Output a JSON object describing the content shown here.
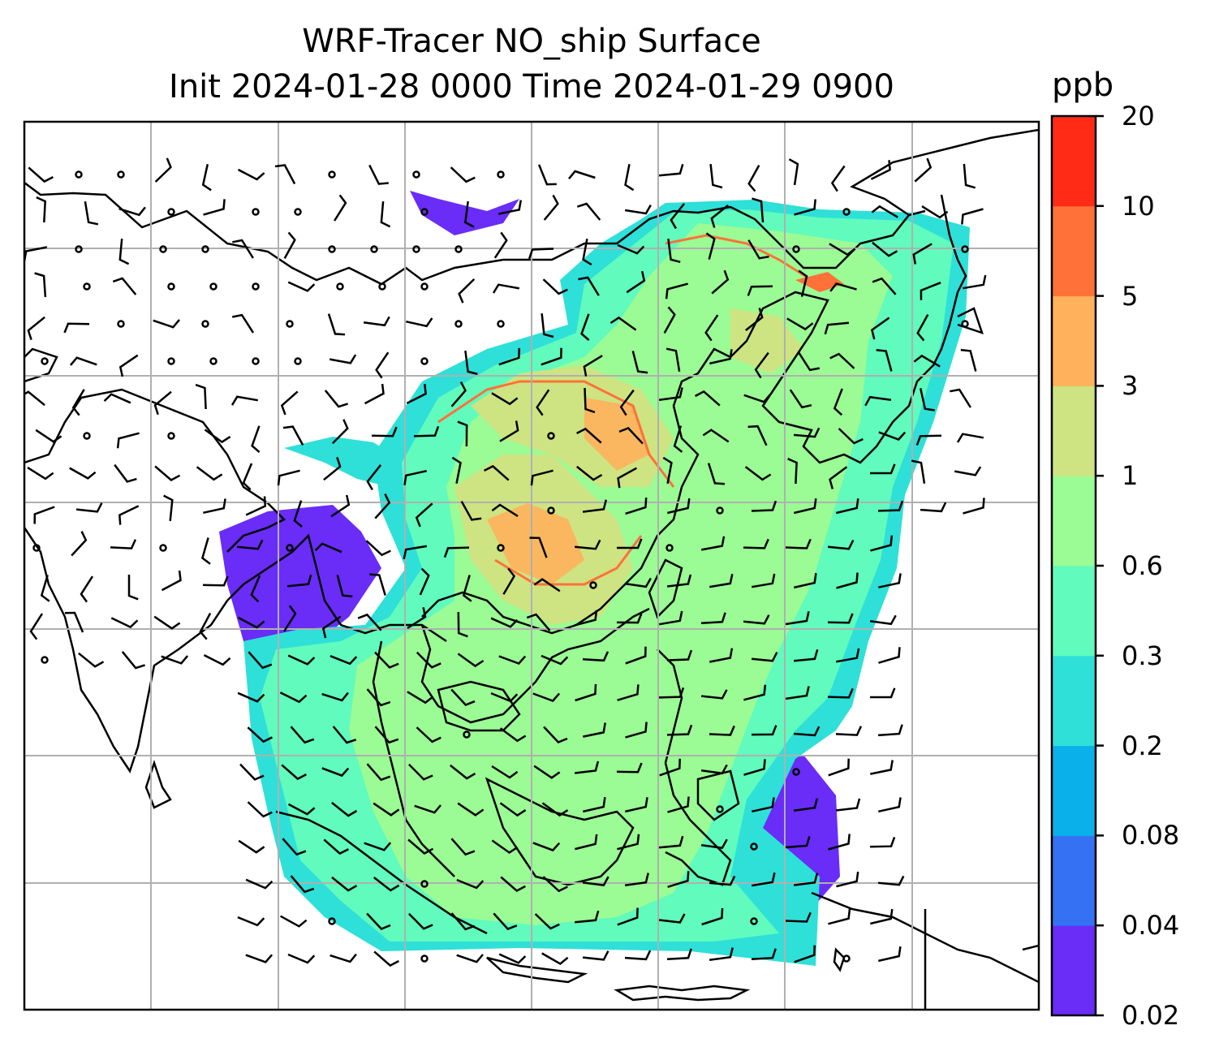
{
  "title": {
    "line1": "WRF-Tracer NO_ship Surface",
    "line2": "Init 2024-01-28 0000 Time 2024-01-29 0900"
  },
  "colorbar": {
    "units": "ppb",
    "levels": [
      "0.02",
      "0.04",
      "0.08",
      "0.2",
      "0.3",
      "0.6",
      "1",
      "3",
      "5",
      "10",
      "20"
    ],
    "colors": [
      "#6a2cf7",
      "#3572f3",
      "#09b0ea",
      "#2ee0d8",
      "#60fbbd",
      "#9bfb94",
      "#cee382",
      "#ffb15b",
      "#ff7138",
      "#ff2b17"
    ]
  },
  "map": {
    "variable": "NO_ship",
    "level": "Surface",
    "features": [
      "coastlines",
      "gridlines",
      "wind-barbs",
      "calm-circles"
    ]
  }
}
